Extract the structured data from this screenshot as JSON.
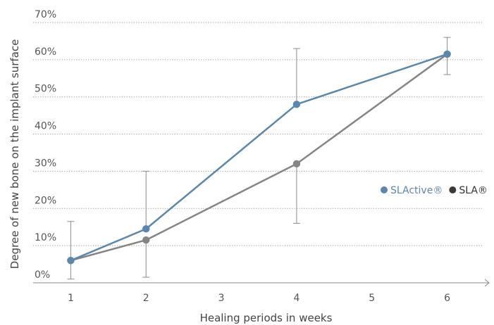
{
  "chart_data": {
    "type": "line",
    "xlabel": "Healing periods in weeks",
    "ylabel": "Degree of new bone on the implant surface",
    "x_ticks": [
      "1",
      "2",
      "3",
      "4",
      "5",
      "6"
    ],
    "y_ticks": [
      "0%",
      "10%",
      "20%",
      "30%",
      "40%",
      "50%",
      "60%",
      "70%"
    ],
    "xlim": [
      0.5,
      6.5
    ],
    "ylim": [
      0,
      70
    ],
    "grid": "horizontal-dotted",
    "legend_position": "right",
    "series": [
      {
        "name": "SLActive®",
        "color": "#5b87ad",
        "x": [
          1,
          2,
          4,
          6
        ],
        "y": [
          6,
          14.5,
          48,
          61.5
        ],
        "error_high": [
          null,
          30,
          63,
          null
        ]
      },
      {
        "name": "SLA®",
        "color": "#858585",
        "legend_marker_color": "#3a3a3a",
        "x": [
          1,
          2,
          4,
          6
        ],
        "y": [
          6,
          11.5,
          32,
          61.5
        ],
        "error_low": [
          1,
          1.5,
          16,
          56
        ],
        "error_high": [
          16.5,
          null,
          null,
          66
        ]
      }
    ]
  }
}
